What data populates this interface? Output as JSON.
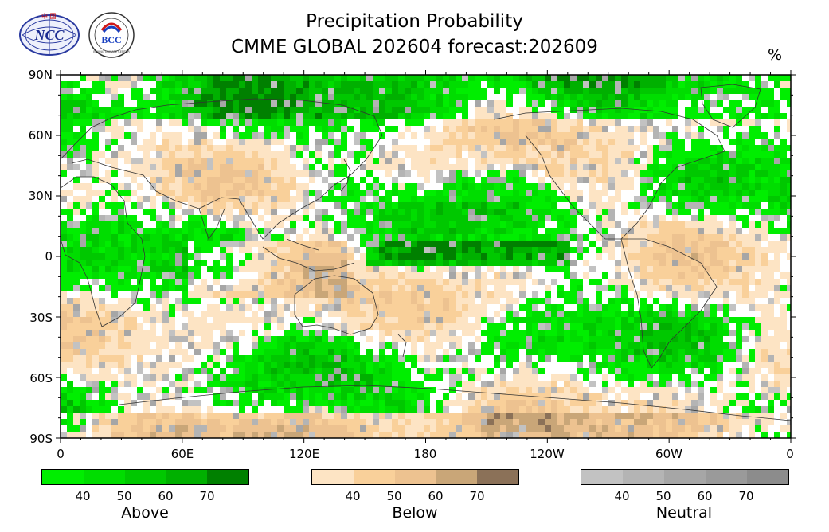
{
  "title_line1": "Precipitation Probability",
  "title_line2": "CMME GLOBAL 202604 forecast:202609",
  "unit": "%",
  "logos": {
    "ncc_text": "NCC",
    "ncc_top_text": "中 国",
    "bcc_text": "BCC",
    "bcc_ring_text": "BEIJING CLIMATE CENTER"
  },
  "lat_labels": [
    "90N",
    "60N",
    "30N",
    "0",
    "30S",
    "60S",
    "90S"
  ],
  "lon_labels": [
    "0",
    "60E",
    "120E",
    "180",
    "120W",
    "60W",
    "0"
  ],
  "legends": [
    {
      "name": "Above",
      "ticks": [
        "40",
        "50",
        "60",
        "70"
      ],
      "colors": [
        "#00ee00",
        "#00dd00",
        "#00c800",
        "#00b000",
        "#008000"
      ]
    },
    {
      "name": "Below",
      "ticks": [
        "40",
        "50",
        "60",
        "70"
      ],
      "colors": [
        "#fde4c4",
        "#f9d09a",
        "#edc290",
        "#c9a678",
        "#8b7158"
      ]
    },
    {
      "name": "Neutral",
      "ticks": [
        "40",
        "50",
        "60",
        "70"
      ],
      "colors": [
        "#c2c2c2",
        "#b4b4b4",
        "#a6a6a6",
        "#9a9a9a",
        "#8c8c8c"
      ]
    }
  ]
}
